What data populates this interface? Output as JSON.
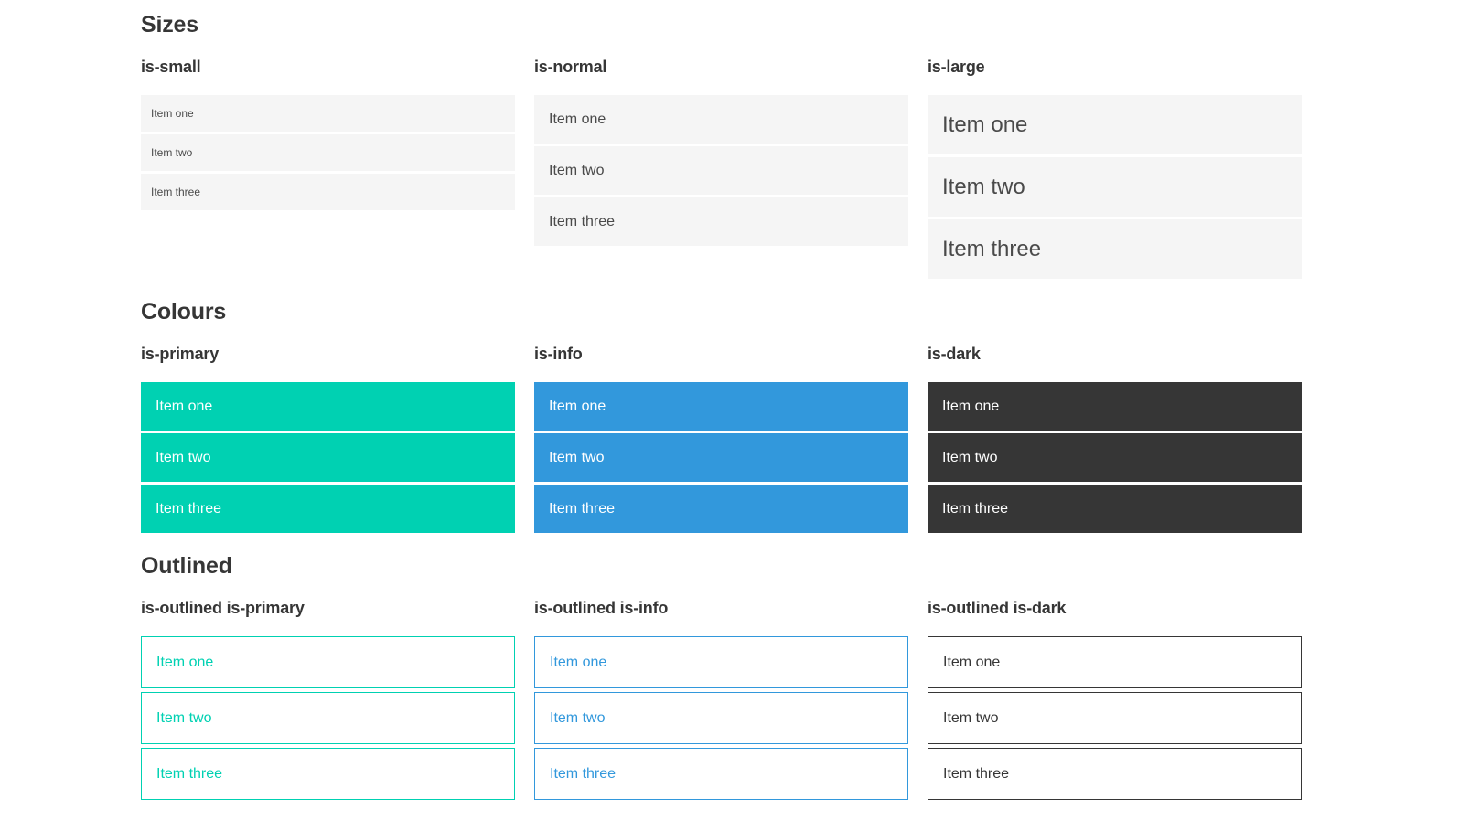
{
  "colors": {
    "primary": "#00d1b2",
    "info": "#3298dc",
    "dark": "#363636",
    "row-bg": "#f5f5f5",
    "heading": "#363636",
    "item-text": "#4a4a4a",
    "inverse": "#ffffff"
  },
  "sections": [
    {
      "title": "Sizes",
      "groups": [
        {
          "label": "is-small",
          "variant": "small",
          "items": [
            "Item one",
            "Item two",
            "Item three"
          ]
        },
        {
          "label": "is-normal",
          "variant": "normal",
          "items": [
            "Item one",
            "Item two",
            "Item three"
          ]
        },
        {
          "label": "is-large",
          "variant": "large",
          "items": [
            "Item one",
            "Item two",
            "Item three"
          ]
        }
      ]
    },
    {
      "title": "Colours",
      "groups": [
        {
          "label": "is-primary",
          "variant": "primary",
          "items": [
            "Item one",
            "Item two",
            "Item three"
          ]
        },
        {
          "label": "is-info",
          "variant": "info",
          "items": [
            "Item one",
            "Item two",
            "Item three"
          ]
        },
        {
          "label": "is-dark",
          "variant": "dark",
          "items": [
            "Item one",
            "Item two",
            "Item three"
          ]
        }
      ]
    },
    {
      "title": "Outlined",
      "groups": [
        {
          "label": "is-outlined is-primary",
          "variant": "outlined-primary",
          "items": [
            "Item one",
            "Item two",
            "Item three"
          ]
        },
        {
          "label": "is-outlined is-info",
          "variant": "outlined-info",
          "items": [
            "Item one",
            "Item two",
            "Item three"
          ]
        },
        {
          "label": "is-outlined is-dark",
          "variant": "outlined-dark",
          "items": [
            "Item one",
            "Item two",
            "Item three"
          ]
        }
      ]
    }
  ]
}
